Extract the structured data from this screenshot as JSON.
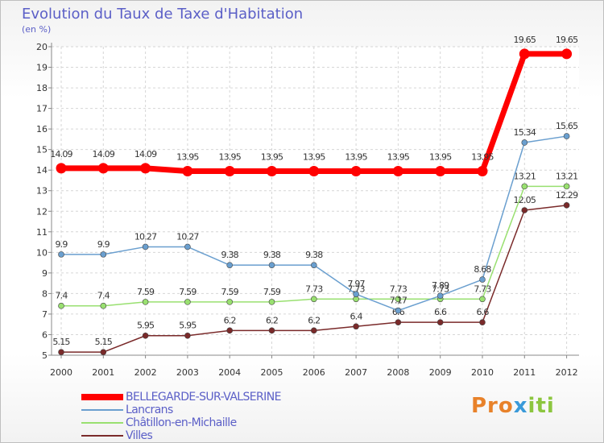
{
  "chart_data": {
    "type": "line",
    "title": "Evolution du Taux de Taxe d'Habitation",
    "subtitle": "(en %)",
    "categories": [
      "2000",
      "2001",
      "2002",
      "2003",
      "2004",
      "2005",
      "2006",
      "2007",
      "2008",
      "2009",
      "2010",
      "2011",
      "2012"
    ],
    "ylim": [
      5,
      20
    ],
    "yticks": [
      5,
      6,
      7,
      8,
      9,
      10,
      11,
      12,
      13,
      14,
      15,
      16,
      17,
      18,
      19,
      20
    ],
    "grid": true,
    "legend_position": "bottom-left",
    "series": [
      {
        "name": "BELLEGARDE-SUR-VALSERINE",
        "color": "#ff0000",
        "values": [
          14.09,
          14.09,
          14.09,
          13.95,
          13.95,
          13.95,
          13.95,
          13.95,
          13.95,
          13.95,
          13.95,
          19.65,
          19.65
        ],
        "labels": [
          "14.09",
          "14.09",
          "14.09",
          "13.95",
          "13.95",
          "13.95",
          "13.95",
          "13.95",
          "13.95",
          "13.95",
          "13.95",
          "19.65",
          "19.65"
        ]
      },
      {
        "name": "Lancrans",
        "color": "#6a9fcf",
        "values": [
          9.9,
          9.9,
          10.27,
          10.27,
          9.38,
          9.38,
          9.38,
          7.97,
          7.17,
          7.89,
          8.68,
          15.34,
          15.65
        ],
        "labels": [
          "9.9",
          "9.9",
          "10.27",
          "10.27",
          "9.38",
          "9.38",
          "9.38",
          "7.97",
          "7.17",
          "7.89",
          "8.68",
          "15.34",
          "15.65"
        ]
      },
      {
        "name": "Châtillon-en-Michaille",
        "color": "#99e070",
        "values": [
          7.4,
          7.4,
          7.59,
          7.59,
          7.59,
          7.59,
          7.73,
          7.73,
          7.73,
          7.73,
          7.73,
          13.21,
          13.21
        ],
        "labels": [
          "7.4",
          "7.4",
          "7.59",
          "7.59",
          "7.59",
          "7.59",
          "7.73",
          "7.73",
          "7.73",
          "7.73",
          "7.73",
          "13.21",
          "13.21"
        ]
      },
      {
        "name": "Villes",
        "color": "#7a2a2a",
        "values": [
          5.15,
          5.15,
          5.95,
          5.95,
          6.2,
          6.2,
          6.2,
          6.4,
          6.6,
          6.6,
          6.6,
          12.05,
          12.29
        ],
        "labels": [
          "5.15",
          "5.15",
          "5.95",
          "5.95",
          "6.2",
          "6.2",
          "6.2",
          "6.4",
          "6.6",
          "6.6",
          "6.6",
          "12.05",
          "12.29"
        ]
      }
    ]
  },
  "branding": {
    "logo_parts": [
      "Pro",
      "x",
      "iti"
    ]
  }
}
